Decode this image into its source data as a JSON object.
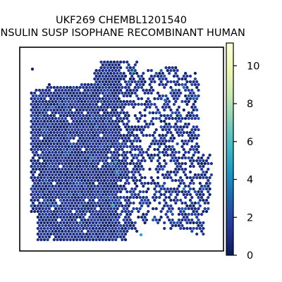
{
  "chart_data": {
    "type": "heatmap",
    "subtype": "spatial-hexbin",
    "title_line1": "UKF269 CHEMBL1201540",
    "title_line2": "INSULIN SUSP ISOPHANE RECOMBINANT HUMAN",
    "colormap": "YlGnBu",
    "colorbar_range": [
      0,
      11.2
    ],
    "colorbar_ticks": [
      "0",
      "2",
      "4",
      "6",
      "8",
      "10"
    ],
    "colorbar_tick_values": [
      0,
      2,
      4,
      6,
      8,
      10
    ],
    "typical_value_range": [
      0,
      3
    ],
    "hotspot_values": [
      5.5,
      5.2,
      5.6,
      5.4,
      4.9,
      3.5
    ],
    "grid": false,
    "axes_visible": false,
    "background": "#ffffff",
    "spot_colors": {
      "low": "#081d58",
      "mid": "#253494",
      "high": "#41b6c4",
      "max": "#ffffd9",
      "white_spot": "#ffffff"
    }
  }
}
